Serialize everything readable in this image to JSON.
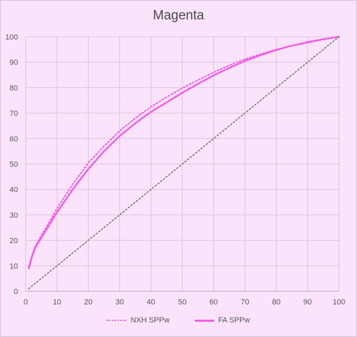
{
  "chart_data": {
    "type": "line",
    "title": "Magenta",
    "xlabel": "",
    "ylabel": "",
    "xlim": [
      0,
      100
    ],
    "ylim": [
      0,
      100
    ],
    "x_ticks": [
      0,
      10,
      20,
      30,
      40,
      50,
      60,
      70,
      80,
      90,
      100
    ],
    "y_ticks": [
      0,
      10,
      20,
      30,
      40,
      50,
      60,
      70,
      80,
      90,
      100
    ],
    "grid": true,
    "legend_position": "bottom",
    "series": [
      {
        "name": "NXH SPPw",
        "style": "dotted",
        "color": "#f25ee6",
        "x": [
          1,
          2,
          3,
          5,
          7,
          10,
          15,
          20,
          25,
          30,
          35,
          40,
          45,
          50,
          55,
          60,
          65,
          70,
          75,
          80,
          85,
          90,
          95,
          100
        ],
        "y": [
          9.5,
          14,
          17.5,
          22,
          26,
          32.5,
          42,
          50.5,
          57,
          63,
          68,
          72.5,
          76.3,
          79.8,
          83,
          86,
          88.8,
          91.2,
          93.2,
          95,
          96.5,
          98,
          99.1,
          100
        ]
      },
      {
        "name": "FA SPPw",
        "style": "solid",
        "color": "#f25ee6",
        "x": [
          1,
          2,
          3,
          5,
          7,
          10,
          15,
          20,
          25,
          30,
          35,
          40,
          45,
          50,
          55,
          60,
          65,
          70,
          75,
          80,
          85,
          90,
          95,
          100
        ],
        "y": [
          9,
          13.5,
          17,
          21,
          25,
          31,
          40,
          48,
          55,
          61,
          66,
          70.5,
          74.2,
          78,
          81.5,
          84.8,
          87.8,
          90.5,
          92.8,
          94.8,
          96.5,
          97.8,
          99,
          100
        ]
      },
      {
        "name": "",
        "style": "dotted-reference",
        "color": "#6e6e6e",
        "x": [
          1,
          100
        ],
        "y": [
          1,
          100
        ]
      }
    ]
  },
  "legend": {
    "items": [
      {
        "label": "NXH SPPw"
      },
      {
        "label": "FA SPPw"
      }
    ]
  }
}
